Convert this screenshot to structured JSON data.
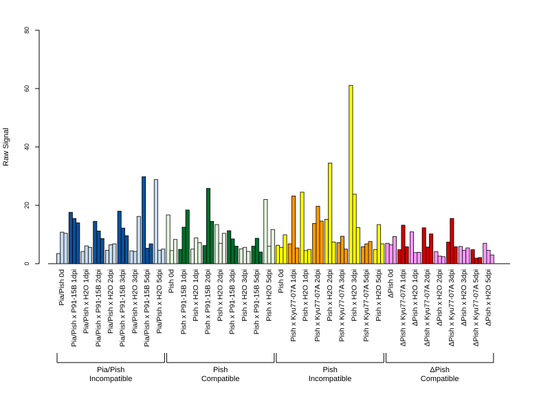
{
  "chart_data": {
    "type": "bar",
    "title": "",
    "xlabel": "",
    "ylabel": "Raw Signal",
    "ylim": [
      0,
      80
    ],
    "yticks": [
      0,
      20,
      40,
      60,
      80
    ],
    "grid": false,
    "categories": [
      "Pia/Pish 0d",
      "Pia/Pish x P91-15B 1dpi",
      "Pia/Pish x H2O 1dpi",
      "Pia/Pish x P91-15B 2dpi",
      "Pia/Pish x H2O 2dpi",
      "Pia/Pish x P91-15B 3dpi",
      "Pia/Pish x H2O 3dpi",
      "Pia/Pish x P91-15B 5dpi",
      "Pia/Pish x H2O 5dpi",
      "Pish 0d",
      "Pish x P91-15B 1dpi",
      "Pish x H2O 1dpi",
      "Pish x P91-15B 2dpi",
      "Pish x H2O 2dpi",
      "Pish x P91-15B 3dpi",
      "Pish x H2O 3dpi",
      "Pish x P91-15B 5dpi",
      "Pish x H2O 5dpi",
      "Pish 0d",
      "Pish x Kyu77-07A 1dpi",
      "Pish x H2O 1dpi",
      "Pish x Kyu77-07A 2dpi",
      "Pish x H2O 2dpi",
      "Pish x Kyu77-07A 3dpi",
      "Pish x H2O 3dpi",
      "Pish x Kyu77-07A 5dpi",
      "Pish x H2O 5dpi",
      "ΔPish 0d",
      "ΔPish x Kyu77-07A 1dpi",
      "ΔPish x H2O 1dpi",
      "ΔPish x Kyu77-07A 2dpi",
      "ΔPish x H2O 2dpi",
      "ΔPish x Kyu77-07A 3dpi",
      "ΔPish x H2O 3dpi",
      "ΔPish x Kyu77-07A 5dpi",
      "ΔPish x H2O 5dpi"
    ],
    "replicates": [
      [
        3.5,
        10.8,
        10.4
      ],
      [
        17.6,
        15.5,
        14.0
      ],
      [
        4.2,
        6.1,
        5.6
      ],
      [
        14.5,
        11.2,
        8.6
      ],
      [
        4.6,
        6.5,
        6.8
      ],
      [
        18.0,
        12.2,
        9.6
      ],
      [
        4.4,
        4.2,
        16.2
      ],
      [
        29.8,
        5.3,
        6.8
      ],
      [
        28.8,
        4.6,
        5.0
      ],
      [
        16.7,
        4.5,
        8.3
      ],
      [
        4.9,
        12.5,
        18.4
      ],
      [
        5.0,
        8.8,
        7.2
      ],
      [
        6.2,
        25.8,
        14.5
      ],
      [
        13.4,
        7.0,
        10.4
      ],
      [
        11.3,
        8.5,
        6.0
      ],
      [
        5.1,
        5.6,
        4.2
      ],
      [
        6.0,
        8.7,
        4.0
      ],
      [
        22.0,
        6.0,
        11.7
      ],
      [
        6.3,
        5.6,
        9.9
      ],
      [
        6.8,
        23.2,
        5.4
      ],
      [
        24.5,
        4.5,
        4.9
      ],
      [
        13.8,
        19.7,
        14.6
      ],
      [
        15.2,
        34.5,
        7.4
      ],
      [
        7.2,
        9.4,
        5.0
      ],
      [
        61.1,
        23.8,
        12.4
      ],
      [
        5.8,
        6.8,
        7.6
      ],
      [
        4.8,
        13.4,
        6.8
      ],
      [
        7.0,
        6.5,
        9.3
      ],
      [
        4.8,
        13.2,
        5.8
      ],
      [
        10.9,
        3.8,
        3.9
      ],
      [
        12.3,
        5.7,
        10.2
      ],
      [
        4.1,
        2.6,
        2.4
      ],
      [
        7.4,
        15.5,
        5.8
      ],
      [
        5.9,
        4.6,
        5.4
      ],
      [
        4.8,
        1.9,
        2.1
      ],
      [
        7.0,
        4.6,
        3.0
      ]
    ],
    "colors": {
      "light_blue": "#c6dbef",
      "dark_blue": "#08519c",
      "light_green": "#e5f5e0",
      "dark_green": "#006d2c",
      "yellow": "#ffff00",
      "orange": "#ff9900",
      "pink": "#ff99ff",
      "red": "#cc0000"
    },
    "bar_colors": [
      "light_blue",
      "dark_blue",
      "light_blue",
      "dark_blue",
      "light_blue",
      "dark_blue",
      "light_blue",
      "dark_blue",
      "light_blue",
      "light_green",
      "dark_green",
      "light_green",
      "dark_green",
      "light_green",
      "dark_green",
      "light_green",
      "dark_green",
      "light_green",
      "yellow",
      "orange",
      "yellow",
      "orange",
      "yellow",
      "orange",
      "yellow",
      "orange",
      "yellow",
      "pink",
      "red",
      "pink",
      "red",
      "pink",
      "red",
      "pink",
      "red",
      "pink"
    ],
    "groups": [
      {
        "line1": "Pia/Pish",
        "line2": "Incompatible",
        "start": 0,
        "end": 8
      },
      {
        "line1": "Pish",
        "line2": "Compatible",
        "start": 9,
        "end": 17
      },
      {
        "line1": "Pish",
        "line2": "Incompatible",
        "start": 18,
        "end": 26
      },
      {
        "line1": "ΔPish",
        "line2": "Compatible",
        "start": 27,
        "end": 35
      }
    ]
  }
}
